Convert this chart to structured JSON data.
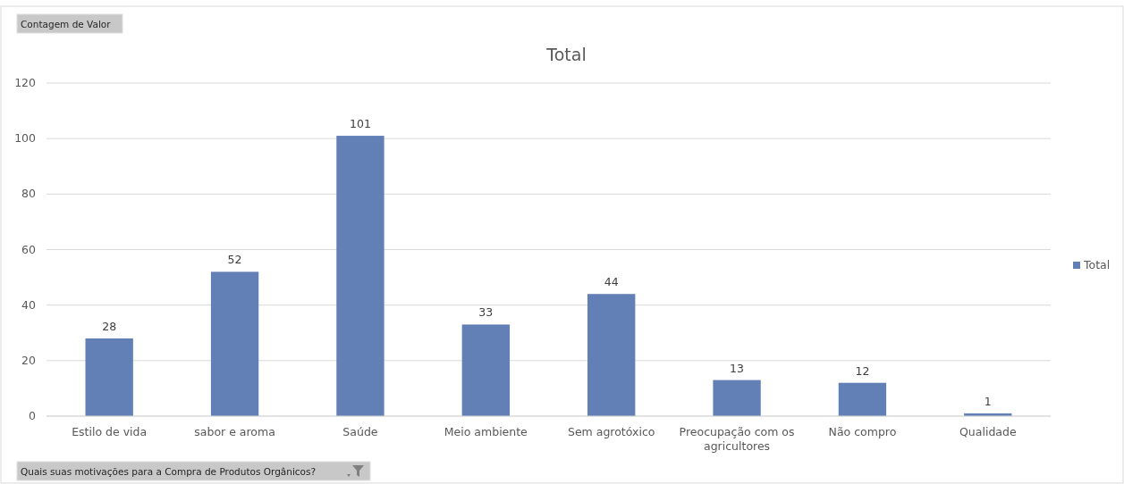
{
  "chart_data": {
    "type": "bar",
    "title": "Total",
    "categories": [
      "Estilo de vida",
      "sabor e aroma",
      "Saúde",
      "Meio ambiente",
      "Sem agrotóxico",
      "Preocupação com os agricultores",
      "Não compro",
      "Qualidade"
    ],
    "series": [
      {
        "name": "Total",
        "color": "#6280b6",
        "values": [
          28,
          52,
          101,
          33,
          44,
          13,
          12,
          1
        ]
      }
    ],
    "ylim": [
      0,
      120
    ],
    "yticks": [
      0,
      20,
      40,
      60,
      80,
      100,
      120
    ],
    "grid": "y",
    "legend": "right",
    "data_labels": true,
    "annotations": [
      "Contagem de Valor",
      "Quais suas motivações para a Compra de Produtos Orgânicos?"
    ]
  }
}
